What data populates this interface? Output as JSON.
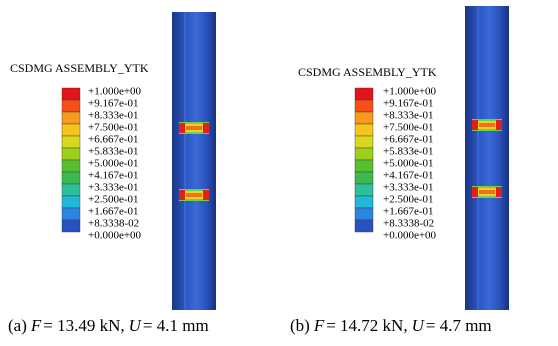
{
  "panels": [
    {
      "legend_title": "CSDMG ASSEMBLY_YTK",
      "legend_labels": [
        "+1.000e+00",
        "+9.167e-01",
        "+8.333e-01",
        "+7.500e-01",
        "+6.667e-01",
        "+5.833e-01",
        "+5.000e-01",
        "+4.167e-01",
        "+3.333e-01",
        "+2.500e-01",
        "+1.667e-01",
        "+8.3338-02",
        "+0.000e+00"
      ],
      "caption": [
        "(a)",
        "F",
        "= 13.49 kN,",
        "U",
        "= 4.1 mm"
      ]
    },
    {
      "legend_title": "CSDMG ASSEMBLY_YTK",
      "legend_labels": [
        "+1.000e+00",
        "+9.167e-01",
        "+8.333e-01",
        "+7.500e-01",
        "+6.667e-01",
        "+5.833e-01",
        "+5.000e-01",
        "+4.167e-01",
        "+3.333e-01",
        "+2.500e-01",
        "+1.667e-01",
        "+8.3338-02",
        "+0.000e+00"
      ],
      "caption": [
        "(b)",
        "F",
        "= 14.72 kN,",
        "U",
        "= 4.7 mm"
      ]
    }
  ]
}
